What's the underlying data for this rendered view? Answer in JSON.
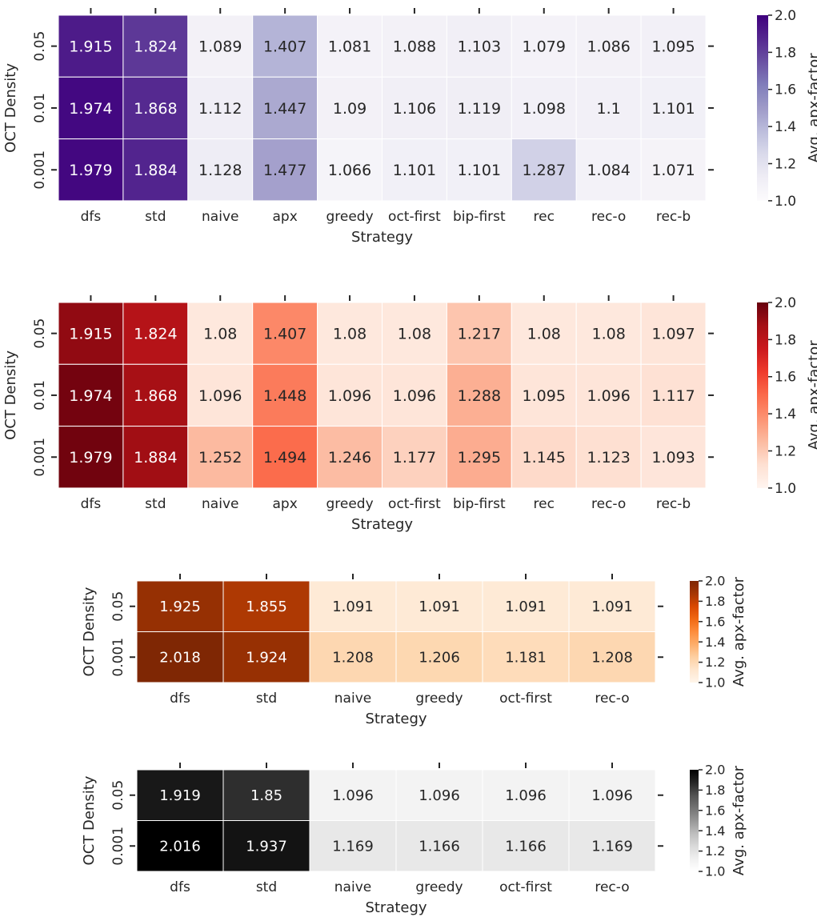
{
  "chart_data": [
    {
      "type": "heatmap",
      "colormap": "Purples",
      "xlabel": "Strategy",
      "ylabel": "OCT Density",
      "colorbar_label": "Avg. apx-factor",
      "vmin": 1.0,
      "vmax": 2.0,
      "colorbar_ticks": [
        "1.0",
        "1.2",
        "1.4",
        "1.6",
        "1.8",
        "2.0"
      ],
      "columns": [
        "dfs",
        "std",
        "naive",
        "apx",
        "greedy",
        "oct-first",
        "bip-first",
        "rec",
        "rec-o",
        "rec-b"
      ],
      "rows": [
        "0.05",
        "0.01",
        "0.001"
      ],
      "values": [
        [
          "1.915",
          "1.824",
          "1.089",
          "1.407",
          "1.081",
          "1.088",
          "1.103",
          "1.079",
          "1.086",
          "1.095"
        ],
        [
          "1.974",
          "1.868",
          "1.112",
          "1.447",
          "1.09",
          "1.106",
          "1.119",
          "1.098",
          "1.1",
          "1.101"
        ],
        [
          "1.979",
          "1.884",
          "1.128",
          "1.477",
          "1.066",
          "1.101",
          "1.101",
          "1.287",
          "1.084",
          "1.071"
        ]
      ]
    },
    {
      "type": "heatmap",
      "colormap": "Reds",
      "xlabel": "Strategy",
      "ylabel": "OCT Density",
      "colorbar_label": "Avg. apx-factor",
      "vmin": 1.0,
      "vmax": 2.0,
      "colorbar_ticks": [
        "1.0",
        "1.2",
        "1.4",
        "1.6",
        "1.8",
        "2.0"
      ],
      "columns": [
        "dfs",
        "std",
        "naive",
        "apx",
        "greedy",
        "oct-first",
        "bip-first",
        "rec",
        "rec-o",
        "rec-b"
      ],
      "rows": [
        "0.05",
        "0.01",
        "0.001"
      ],
      "values": [
        [
          "1.915",
          "1.824",
          "1.08",
          "1.407",
          "1.08",
          "1.08",
          "1.217",
          "1.08",
          "1.08",
          "1.097"
        ],
        [
          "1.974",
          "1.868",
          "1.096",
          "1.448",
          "1.096",
          "1.096",
          "1.288",
          "1.095",
          "1.096",
          "1.117"
        ],
        [
          "1.979",
          "1.884",
          "1.252",
          "1.494",
          "1.246",
          "1.177",
          "1.295",
          "1.145",
          "1.123",
          "1.093"
        ]
      ]
    },
    {
      "type": "heatmap",
      "colormap": "Oranges",
      "xlabel": "Strategy",
      "ylabel": "OCT Density",
      "colorbar_label": "Avg. apx-factor",
      "vmin": 1.0,
      "vmax": 2.0,
      "colorbar_ticks": [
        "1.0",
        "1.2",
        "1.4",
        "1.6",
        "1.8",
        "2.0"
      ],
      "columns": [
        "dfs",
        "std",
        "naive",
        "greedy",
        "oct-first",
        "rec-o"
      ],
      "rows": [
        "0.05",
        "0.001"
      ],
      "values": [
        [
          "1.925",
          "1.855",
          "1.091",
          "1.091",
          "1.091",
          "1.091"
        ],
        [
          "2.018",
          "1.924",
          "1.208",
          "1.206",
          "1.181",
          "1.208"
        ]
      ]
    },
    {
      "type": "heatmap",
      "colormap": "Greys",
      "xlabel": "Strategy",
      "ylabel": "OCT Density",
      "colorbar_label": "Avg. apx-factor",
      "vmin": 1.0,
      "vmax": 2.0,
      "colorbar_ticks": [
        "1.0",
        "1.2",
        "1.4",
        "1.6",
        "1.8",
        "2.0"
      ],
      "columns": [
        "dfs",
        "std",
        "naive",
        "greedy",
        "oct-first",
        "rec-o"
      ],
      "rows": [
        "0.05",
        "0.001"
      ],
      "values": [
        [
          "1.919",
          "1.85",
          "1.096",
          "1.096",
          "1.096",
          "1.096"
        ],
        [
          "2.016",
          "1.937",
          "1.169",
          "1.166",
          "1.166",
          "1.169"
        ]
      ]
    }
  ]
}
